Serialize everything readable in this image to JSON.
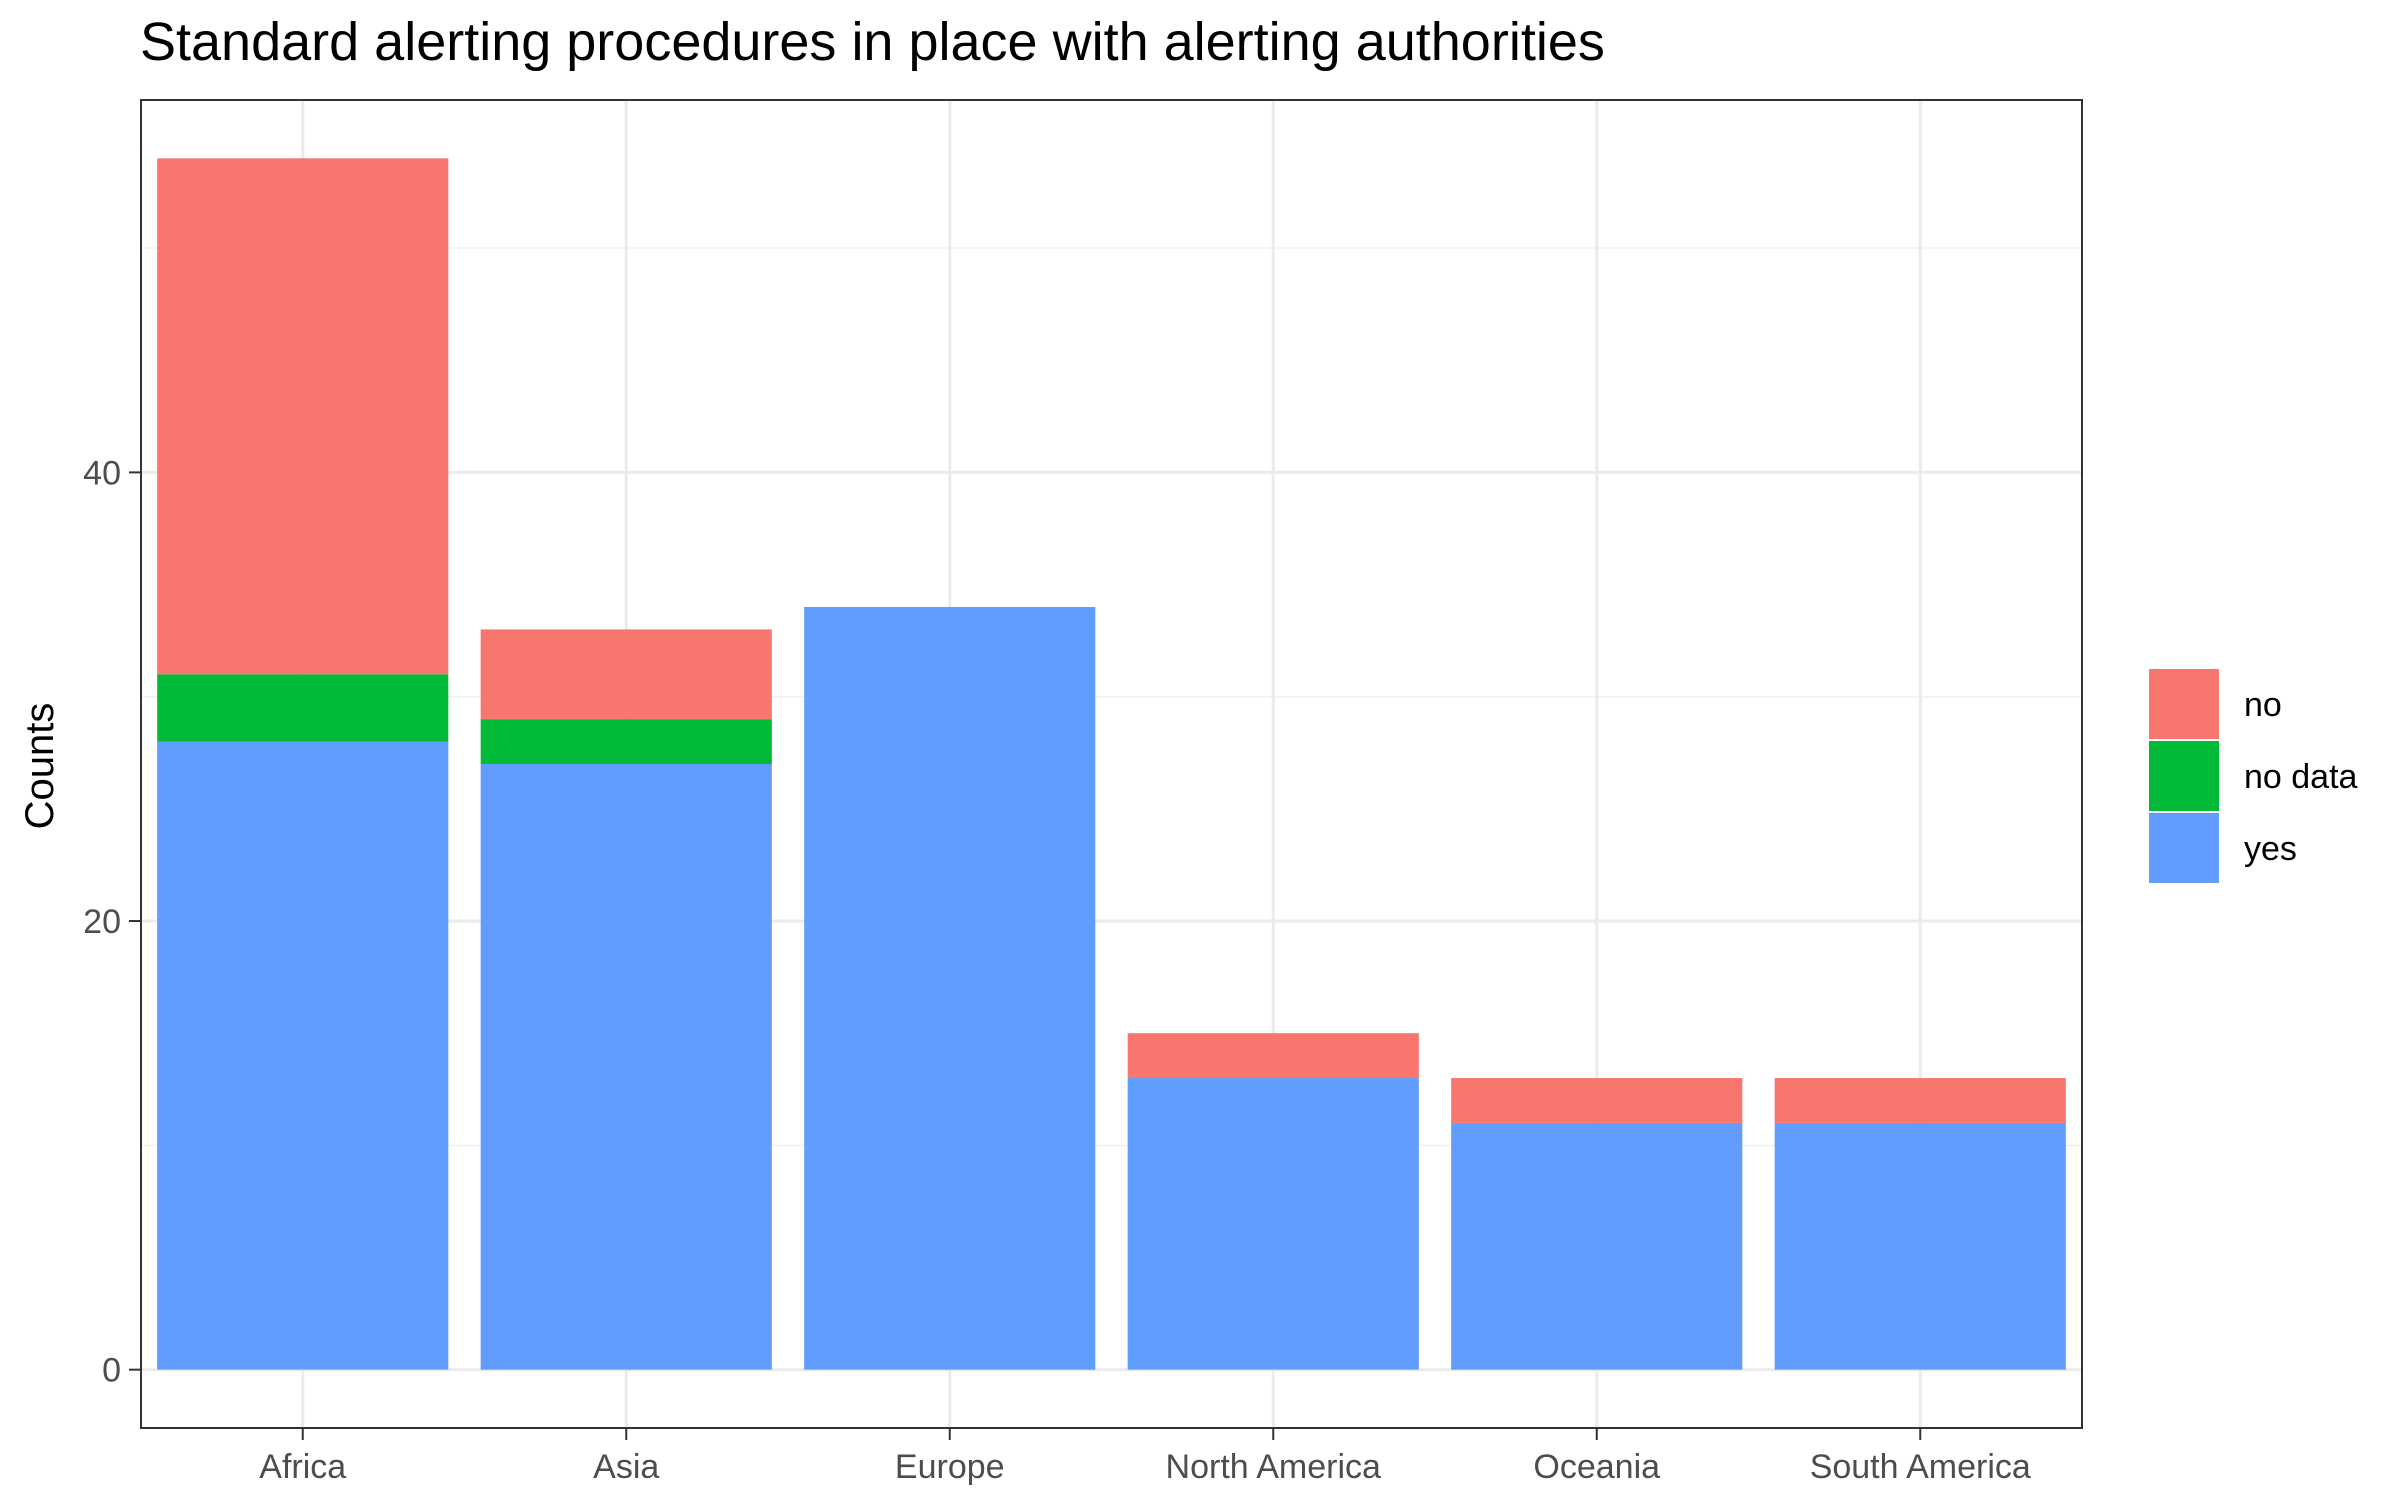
{
  "chart_data": {
    "type": "bar",
    "stacked": true,
    "title": "Standard alerting procedures in place with alerting authorities",
    "xlabel": "",
    "ylabel": "Counts",
    "categories": [
      "Africa",
      "Asia",
      "Europe",
      "North America",
      "Oceania",
      "South America"
    ],
    "series": [
      {
        "name": "yes",
        "color": "#619CFF",
        "values": [
          28,
          27,
          34,
          13,
          11,
          11
        ]
      },
      {
        "name": "no data",
        "color": "#00BA38",
        "values": [
          3,
          2,
          0,
          0,
          0,
          0
        ]
      },
      {
        "name": "no",
        "color": "#F8766D",
        "values": [
          23,
          4,
          0,
          2,
          2,
          2
        ]
      }
    ],
    "legend_order": [
      "no",
      "no data",
      "yes"
    ],
    "legend_position": "right",
    "yticks": [
      0,
      20,
      40
    ],
    "ylim": [
      -2.6,
      56.6
    ],
    "grid": true,
    "theme": "bw"
  }
}
